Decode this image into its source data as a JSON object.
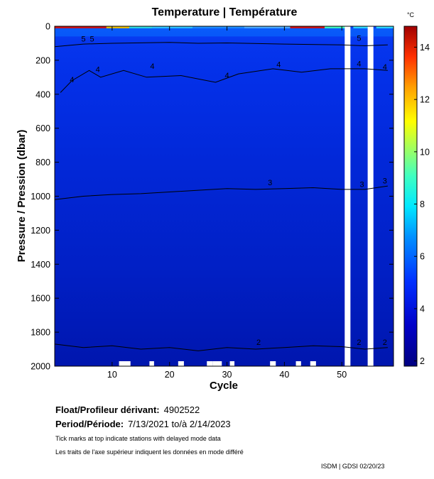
{
  "chart_data": {
    "type": "heatmap",
    "title": "Temperature | Température",
    "xlabel": "Cycle",
    "ylabel": "Pressure / Pression (dbar)",
    "colorbar_unit": "°C",
    "xlim": [
      0,
      59
    ],
    "ylim": [
      2000,
      0
    ],
    "xticks": [
      10,
      20,
      30,
      40,
      50
    ],
    "yticks": [
      0,
      200,
      400,
      600,
      800,
      1000,
      1200,
      1400,
      1600,
      1800,
      2000
    ],
    "colorbar_range": [
      1.8,
      14.8
    ],
    "colorbar_ticks": [
      2,
      4,
      6,
      8,
      10,
      12,
      14
    ],
    "missing_cycles": [
      51,
      55
    ],
    "contours": [
      {
        "level": 5,
        "depth_by_cycle": [
          [
            0,
            120
          ],
          [
            5,
            105
          ],
          [
            10,
            100
          ],
          [
            20,
            95
          ],
          [
            25,
            100
          ],
          [
            30,
            98
          ],
          [
            40,
            105
          ],
          [
            50,
            110
          ],
          [
            54,
            115
          ],
          [
            58,
            110
          ]
        ]
      },
      {
        "level": 4,
        "depth_by_cycle": [
          [
            1,
            390
          ],
          [
            3,
            320
          ],
          [
            6,
            260
          ],
          [
            8,
            300
          ],
          [
            12,
            260
          ],
          [
            16,
            300
          ],
          [
            22,
            290
          ],
          [
            28,
            330
          ],
          [
            32,
            280
          ],
          [
            38,
            250
          ],
          [
            43,
            270
          ],
          [
            48,
            250
          ],
          [
            54,
            250
          ],
          [
            58,
            260
          ]
        ]
      },
      {
        "level": 3,
        "depth_by_cycle": [
          [
            0,
            1020
          ],
          [
            5,
            1000
          ],
          [
            10,
            990
          ],
          [
            15,
            985
          ],
          [
            20,
            975
          ],
          [
            25,
            965
          ],
          [
            30,
            955
          ],
          [
            35,
            960
          ],
          [
            40,
            955
          ],
          [
            45,
            950
          ],
          [
            50,
            960
          ],
          [
            54,
            960
          ],
          [
            58,
            940
          ]
        ]
      },
      {
        "level": 2,
        "depth_by_cycle": [
          [
            0,
            1870
          ],
          [
            5,
            1890
          ],
          [
            10,
            1880
          ],
          [
            15,
            1900
          ],
          [
            20,
            1890
          ],
          [
            25,
            1910
          ],
          [
            30,
            1890
          ],
          [
            35,
            1900
          ],
          [
            40,
            1890
          ],
          [
            45,
            1880
          ],
          [
            50,
            1885
          ],
          [
            54,
            1900
          ],
          [
            58,
            1890
          ]
        ]
      }
    ],
    "contour_labels": [
      {
        "text": "5",
        "cycle": 5,
        "depth": 90
      },
      {
        "text": "5",
        "cycle": 6.5,
        "depth": 90
      },
      {
        "text": "4",
        "cycle": 3,
        "depth": 330
      },
      {
        "text": "4",
        "cycle": 7.5,
        "depth": 270
      },
      {
        "text": "4",
        "cycle": 17,
        "depth": 250
      },
      {
        "text": "4",
        "cycle": 30,
        "depth": 305
      },
      {
        "text": "4",
        "cycle": 39,
        "depth": 240
      },
      {
        "text": "4",
        "cycle": 53,
        "depth": 235
      },
      {
        "text": "4",
        "cycle": 57.5,
        "depth": 255
      },
      {
        "text": "5",
        "cycle": 53,
        "depth": 85
      },
      {
        "text": "3",
        "cycle": 37.5,
        "depth": 935
      },
      {
        "text": "3",
        "cycle": 53.5,
        "depth": 945
      },
      {
        "text": "3",
        "cycle": 57.5,
        "depth": 925
      },
      {
        "text": "2",
        "cycle": 35.5,
        "depth": 1875
      },
      {
        "text": "2",
        "cycle": 53,
        "depth": 1875
      },
      {
        "text": "2",
        "cycle": 57.5,
        "depth": 1875
      }
    ]
  },
  "caption": {
    "float_label": "Float/Profileur dérivant:",
    "float_value": "4902522",
    "period_label": "Period/Période:",
    "period_value": "7/13/2021  to/à  2/14/2023",
    "note_en": "Tick marks at top indicate stations with delayed mode data",
    "note_fr": "Les traits de l'axe supérieur indiquent les données en mode différé",
    "credit": "ISDM | GDSI  02/20/23"
  }
}
